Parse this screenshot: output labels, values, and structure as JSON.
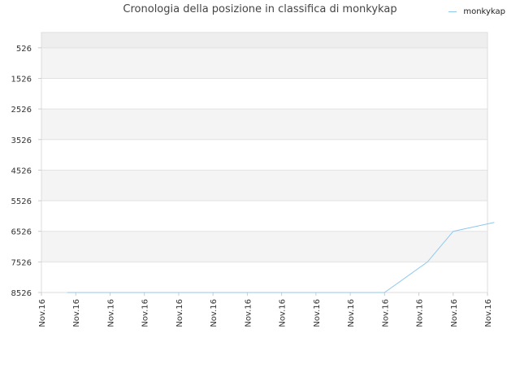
{
  "chart_data": {
    "type": "line",
    "title": "Cronologia della posizione in classifica di monkykap",
    "xlabel": "",
    "ylabel": "",
    "x_ticks": [
      "Nov.16",
      "Nov.16",
      "Nov.16",
      "Nov.16",
      "Nov.16",
      "Nov.16",
      "Nov.16",
      "Nov.16",
      "Nov.16",
      "Nov.16",
      "Nov.16",
      "Nov.16",
      "Nov.16",
      "Nov.16"
    ],
    "y_ticks": [
      526,
      1526,
      2526,
      3526,
      4526,
      5526,
      6526,
      7526,
      8526
    ],
    "ylim": [
      8526,
      26
    ],
    "y_reversed": true,
    "grid": true,
    "legend_position": "top-right",
    "series": [
      {
        "name": "monkykap",
        "color": "#8ec8ee",
        "x": [
          0.75,
          1,
          2,
          3,
          4,
          5,
          6,
          7,
          8,
          9,
          10,
          11.25,
          12,
          13.2
        ],
        "values": [
          8526,
          8526,
          8526,
          8526,
          8526,
          8526,
          8526,
          8526,
          8526,
          8526,
          8526,
          7526,
          6526,
          6236
        ]
      }
    ]
  }
}
